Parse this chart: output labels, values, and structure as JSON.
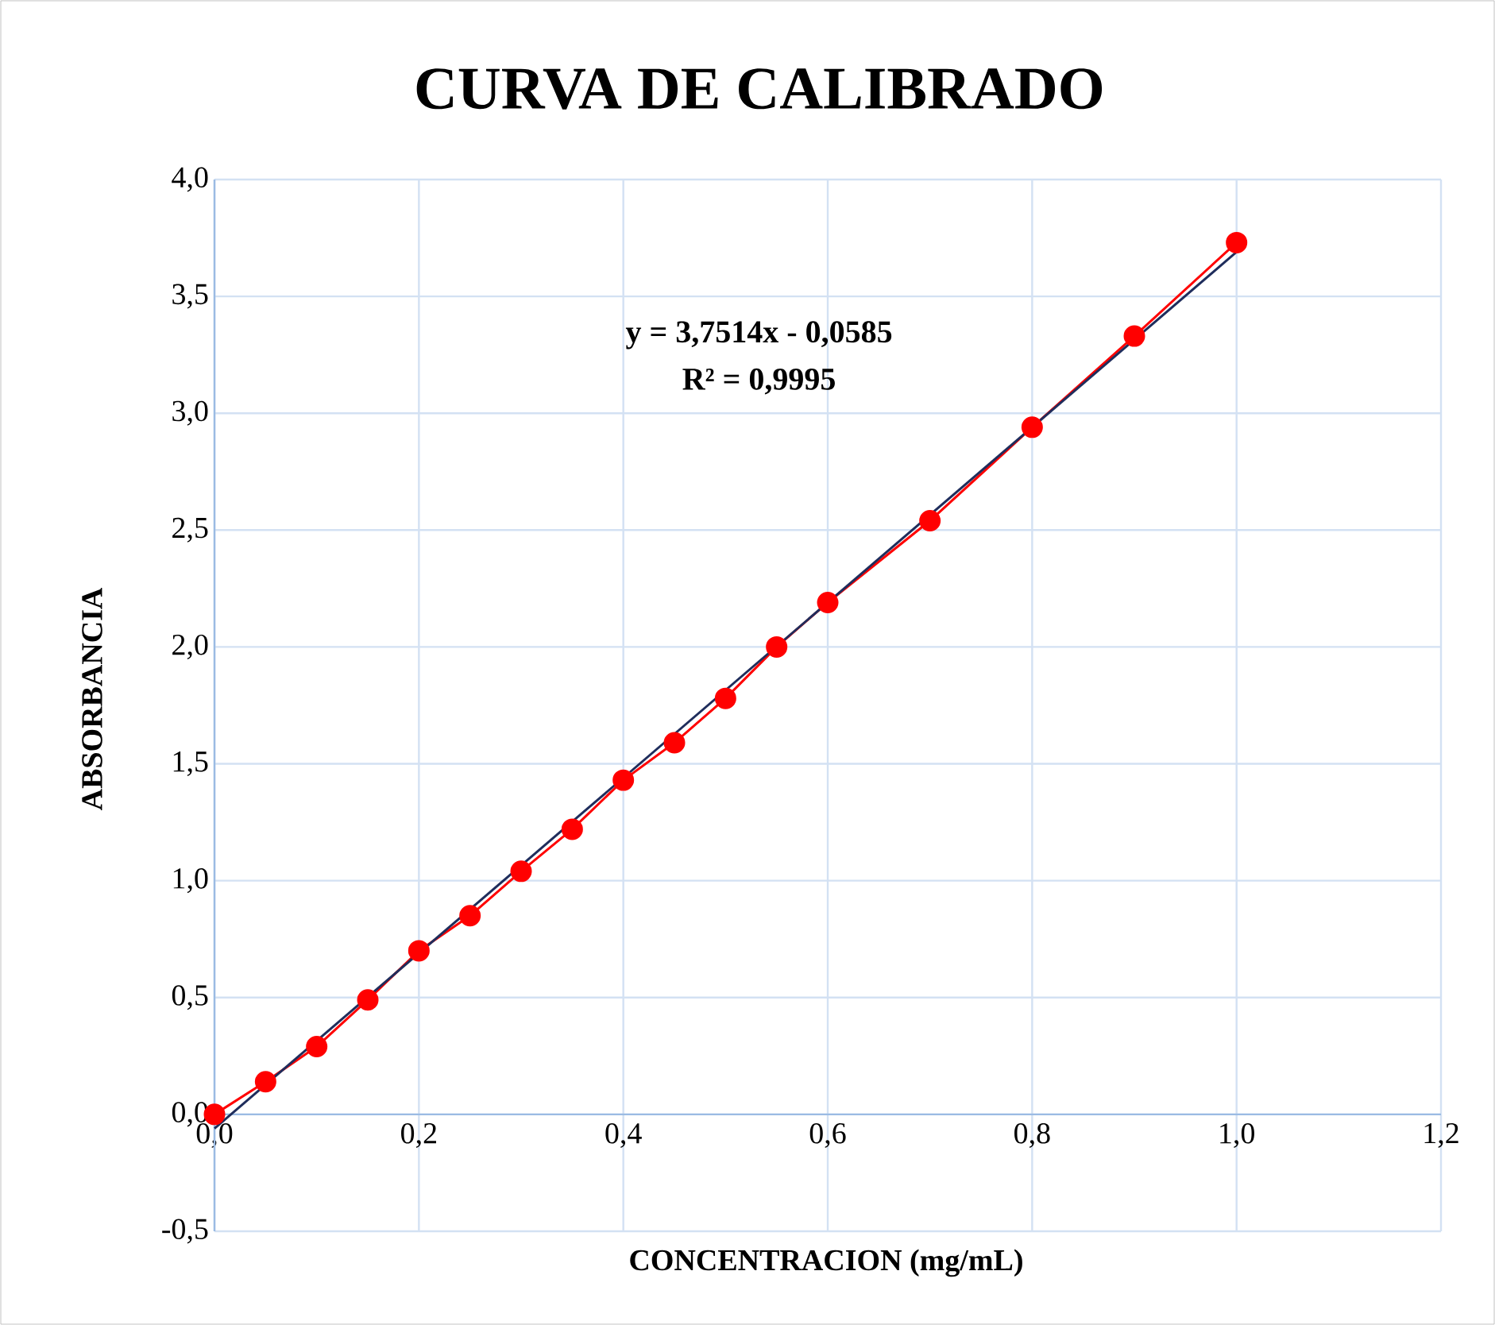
{
  "chart_data": {
    "type": "line",
    "title": "CURVA DE CALIBRADO",
    "xlabel": "CONCENTRACION (mg/mL)",
    "ylabel": "ABSORBANCIA",
    "annotations": [
      "y = 3,7514x - 0,0585",
      "R² = 0,9995"
    ],
    "series": [
      {
        "type": "line",
        "color": "#ff0000",
        "marker": "circle",
        "x": [
          0,
          0.05,
          0.1,
          0.15,
          0.2,
          0.25,
          0.3,
          0.35,
          0.4,
          0.45,
          0.5,
          0.55,
          0.6,
          0.7,
          0.8,
          0.9,
          1.0
        ],
        "values": [
          0.0,
          0.14,
          0.29,
          0.49,
          0.7,
          0.85,
          1.04,
          1.22,
          1.43,
          1.59,
          1.78,
          2.0,
          2.19,
          2.54,
          2.94,
          3.33,
          3.73
        ]
      },
      {
        "type": "line",
        "color": "#1f2d5c",
        "marker": "none",
        "x": [
          0,
          1.0
        ],
        "values": [
          -0.06,
          3.69
        ]
      }
    ],
    "xlim": [
      0,
      1.2
    ],
    "ylim": [
      -0.5,
      4.0
    ],
    "xticks": [
      {
        "value": 0,
        "label": "0,0"
      },
      {
        "value": 0.2,
        "label": "0,2"
      },
      {
        "value": 0.4,
        "label": "0,4"
      },
      {
        "value": 0.6,
        "label": "0,6"
      },
      {
        "value": 0.8,
        "label": "0,8"
      },
      {
        "value": 1.0,
        "label": "1,0"
      },
      {
        "value": 1.2,
        "label": "1,2"
      }
    ],
    "yticks": [
      {
        "value": -0.5,
        "label": "-0,5"
      },
      {
        "value": 0,
        "label": "0,0"
      },
      {
        "value": 0.5,
        "label": "0,5"
      },
      {
        "value": 1.0,
        "label": "1,0"
      },
      {
        "value": 1.5,
        "label": "1,5"
      },
      {
        "value": 2.0,
        "label": "2,0"
      },
      {
        "value": 2.5,
        "label": "2,5"
      },
      {
        "value": 3.0,
        "label": "3,0"
      },
      {
        "value": 3.5,
        "label": "3,5"
      },
      {
        "value": 4.0,
        "label": "4,0"
      }
    ],
    "grid": true
  }
}
